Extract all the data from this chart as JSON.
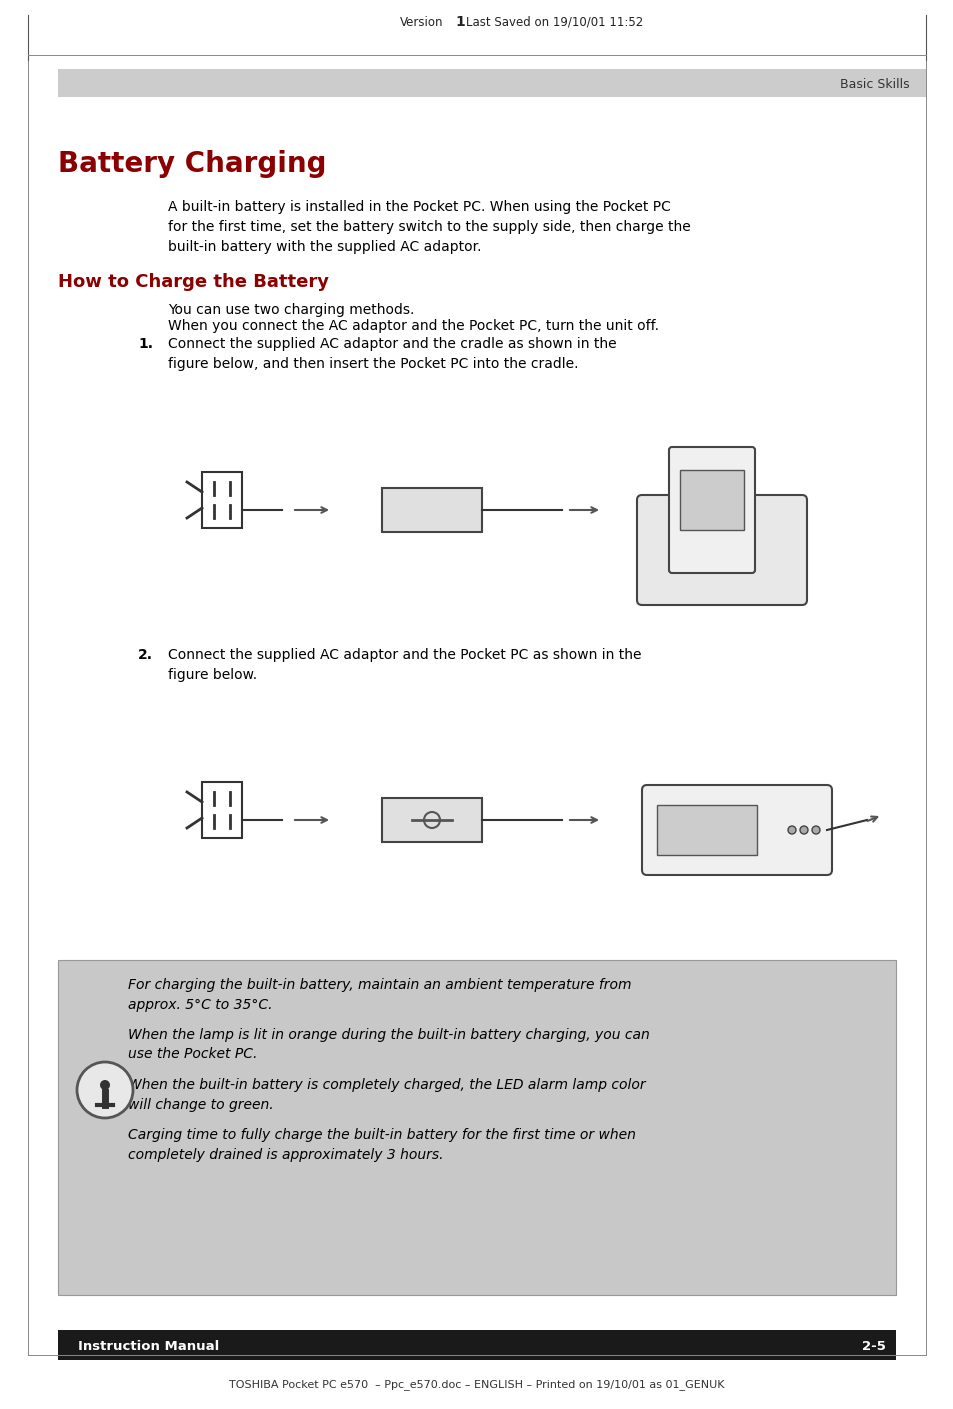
{
  "page_bg": "#ffffff",
  "header_bar_color": "#cccccc",
  "header_text": "Basic Skills",
  "header_text_color": "#333333",
  "footer_bar_color": "#1a1a1a",
  "footer_text": "Instruction Manual",
  "footer_page": "2-5",
  "footer_text_color": "#ffffff",
  "bottom_text": "TOSHIBA Pocket PC e570  – Ppc_e570.doc – ENGLISH – Printed on 19/10/01 as 01_GENUK",
  "top_header_text": "Version",
  "top_header_num": "1",
  "top_header_rest": "Last Saved on 19/10/01 11:52",
  "main_title": "Battery Charging",
  "main_title_color": "#8b0000",
  "main_title_size": 20,
  "section_title": "How to Charge the Battery",
  "section_title_color": "#8b0000",
  "section_title_size": 13,
  "body_text_color": "#000000",
  "body_font_size": 10,
  "para_intro": "A built-in battery is installed in the Pocket PC. When using the Pocket PC\nfor the first time, set the battery switch to the supply side, then charge the\nbuilt-in battery with the supplied AC adaptor.",
  "para_methods": "You can use two charging methods.",
  "para_when": "When you connect the AC adaptor and the Pocket PC, turn the unit off.",
  "step1_num": "1.",
  "step1_text": "Connect the supplied AC adaptor and the cradle as shown in the\nfigure below, and then insert the Pocket PC into the cradle.",
  "step2_num": "2.",
  "step2_text": "Connect the supplied AC adaptor and the Pocket PC as shown in the\nfigure below.",
  "note_bg": "#c8c8c8",
  "note_border": "#aaaaaa",
  "note_paragraphs": [
    "For charging the built-in battery, maintain an ambient temperature from\napprox. 5°C to 35°C.",
    "When the lamp is lit in orange during the built-in battery charging, you can\nuse the Pocket PC.",
    "When the built-in battery is completely charged, the LED alarm lamp color\nwill change to green.",
    "Carging time to fully charge the built-in battery for the first time or when\ncompletely drained is approximately 3 hours."
  ]
}
